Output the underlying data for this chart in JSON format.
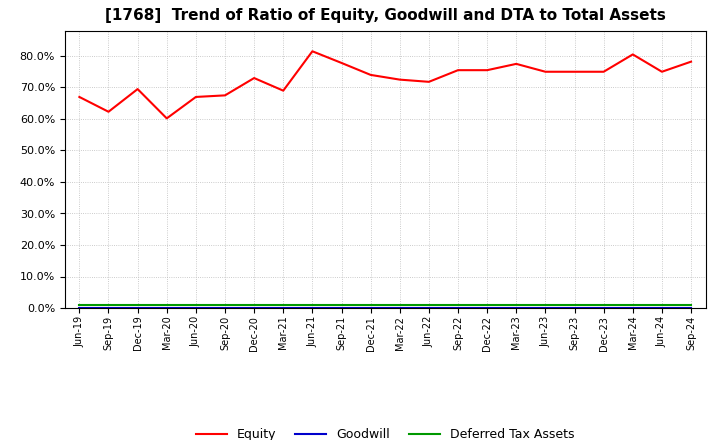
{
  "title": "[1768]  Trend of Ratio of Equity, Goodwill and DTA to Total Assets",
  "x_labels": [
    "Jun-19",
    "Sep-19",
    "Dec-19",
    "Mar-20",
    "Jun-20",
    "Sep-20",
    "Dec-20",
    "Mar-21",
    "Jun-21",
    "Sep-21",
    "Dec-21",
    "Mar-22",
    "Jun-22",
    "Sep-22",
    "Dec-22",
    "Mar-23",
    "Jun-23",
    "Sep-23",
    "Dec-23",
    "Mar-24",
    "Jun-24",
    "Sep-24"
  ],
  "equity": [
    0.67,
    0.623,
    0.695,
    0.602,
    0.67,
    0.675,
    0.73,
    0.69,
    0.815,
    0.778,
    0.74,
    0.725,
    0.718,
    0.755,
    0.755,
    0.775,
    0.75,
    0.75,
    0.75,
    0.805,
    0.75,
    0.782
  ],
  "goodwill": [
    0.0,
    0.0,
    0.0,
    0.0,
    0.0,
    0.0,
    0.0,
    0.0,
    0.0,
    0.0,
    0.0,
    0.0,
    0.0,
    0.0,
    0.0,
    0.0,
    0.0,
    0.0,
    0.0,
    0.0,
    0.0,
    0.0
  ],
  "dta": [
    0.01,
    0.01,
    0.01,
    0.01,
    0.01,
    0.01,
    0.01,
    0.01,
    0.01,
    0.01,
    0.01,
    0.01,
    0.01,
    0.01,
    0.01,
    0.01,
    0.01,
    0.01,
    0.01,
    0.01,
    0.01,
    0.01
  ],
  "equity_color": "#FF0000",
  "goodwill_color": "#0000CC",
  "dta_color": "#009900",
  "background_color": "#FFFFFF",
  "grid_color": "#BBBBBB",
  "ylim": [
    0.0,
    0.88
  ],
  "yticks": [
    0.0,
    0.1,
    0.2,
    0.3,
    0.4,
    0.5,
    0.6,
    0.7,
    0.8
  ],
  "legend_labels": [
    "Equity",
    "Goodwill",
    "Deferred Tax Assets"
  ]
}
